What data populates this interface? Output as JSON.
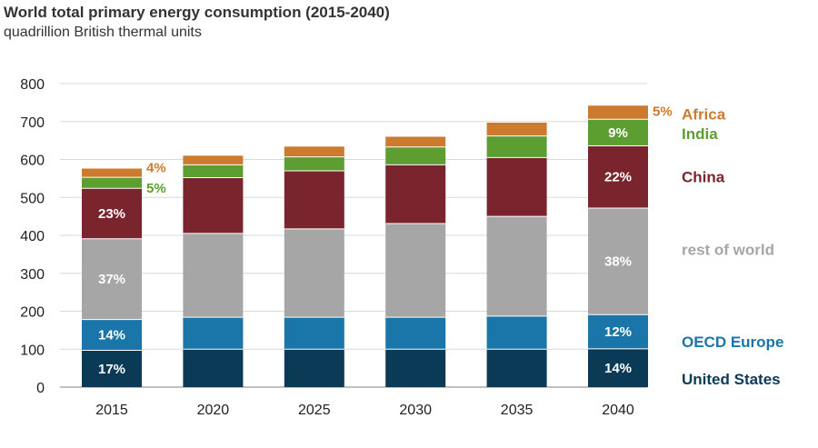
{
  "chart_data": {
    "type": "bar",
    "stacked": true,
    "title": "World total primary energy consumption (2015-2040)",
    "subtitle": "quadrillion British thermal units",
    "categories": [
      "2015",
      "2020",
      "2025",
      "2030",
      "2035",
      "2040"
    ],
    "ylim": [
      0,
      800
    ],
    "yticks": [
      0,
      100,
      200,
      300,
      400,
      500,
      600,
      700,
      800
    ],
    "grid": true,
    "legend_placement": "right",
    "series": [
      {
        "name": "United States",
        "color": "#0b3a57",
        "values": [
          97,
          100,
          100,
          100,
          100,
          101
        ]
      },
      {
        "name": "OECD Europe",
        "color": "#1a76a8",
        "values": [
          81,
          84,
          84,
          84,
          87,
          90
        ]
      },
      {
        "name": "rest of world",
        "color": "#a6a6a6",
        "values": [
          213,
          221,
          233,
          247,
          263,
          281
        ]
      },
      {
        "name": "China",
        "color": "#7a242d",
        "values": [
          133,
          147,
          153,
          155,
          155,
          164
        ]
      },
      {
        "name": "India",
        "color": "#5c9e32",
        "values": [
          29,
          34,
          37,
          47,
          57,
          70
        ]
      },
      {
        "name": "Africa",
        "color": "#cc7a2e",
        "values": [
          23,
          24,
          27,
          27,
          35,
          36
        ]
      }
    ],
    "data_labels": [
      {
        "category": "2015",
        "series": "United States",
        "text": "17%"
      },
      {
        "category": "2015",
        "series": "OECD Europe",
        "text": "14%"
      },
      {
        "category": "2015",
        "series": "rest of world",
        "text": "37%"
      },
      {
        "category": "2015",
        "series": "China",
        "text": "23%"
      },
      {
        "category": "2040",
        "series": "United States",
        "text": "14%"
      },
      {
        "category": "2040",
        "series": "OECD Europe",
        "text": "12%"
      },
      {
        "category": "2040",
        "series": "rest of world",
        "text": "38%"
      },
      {
        "category": "2040",
        "series": "China",
        "text": "22%"
      },
      {
        "category": "2040",
        "series": "India",
        "text": "9%"
      }
    ],
    "side_annotations": [
      {
        "category": "2015",
        "series": "Africa",
        "text": "4%"
      },
      {
        "category": "2015",
        "series": "India",
        "text": "5%"
      },
      {
        "category": "2040",
        "series": "Africa",
        "text": "5%"
      }
    ]
  }
}
